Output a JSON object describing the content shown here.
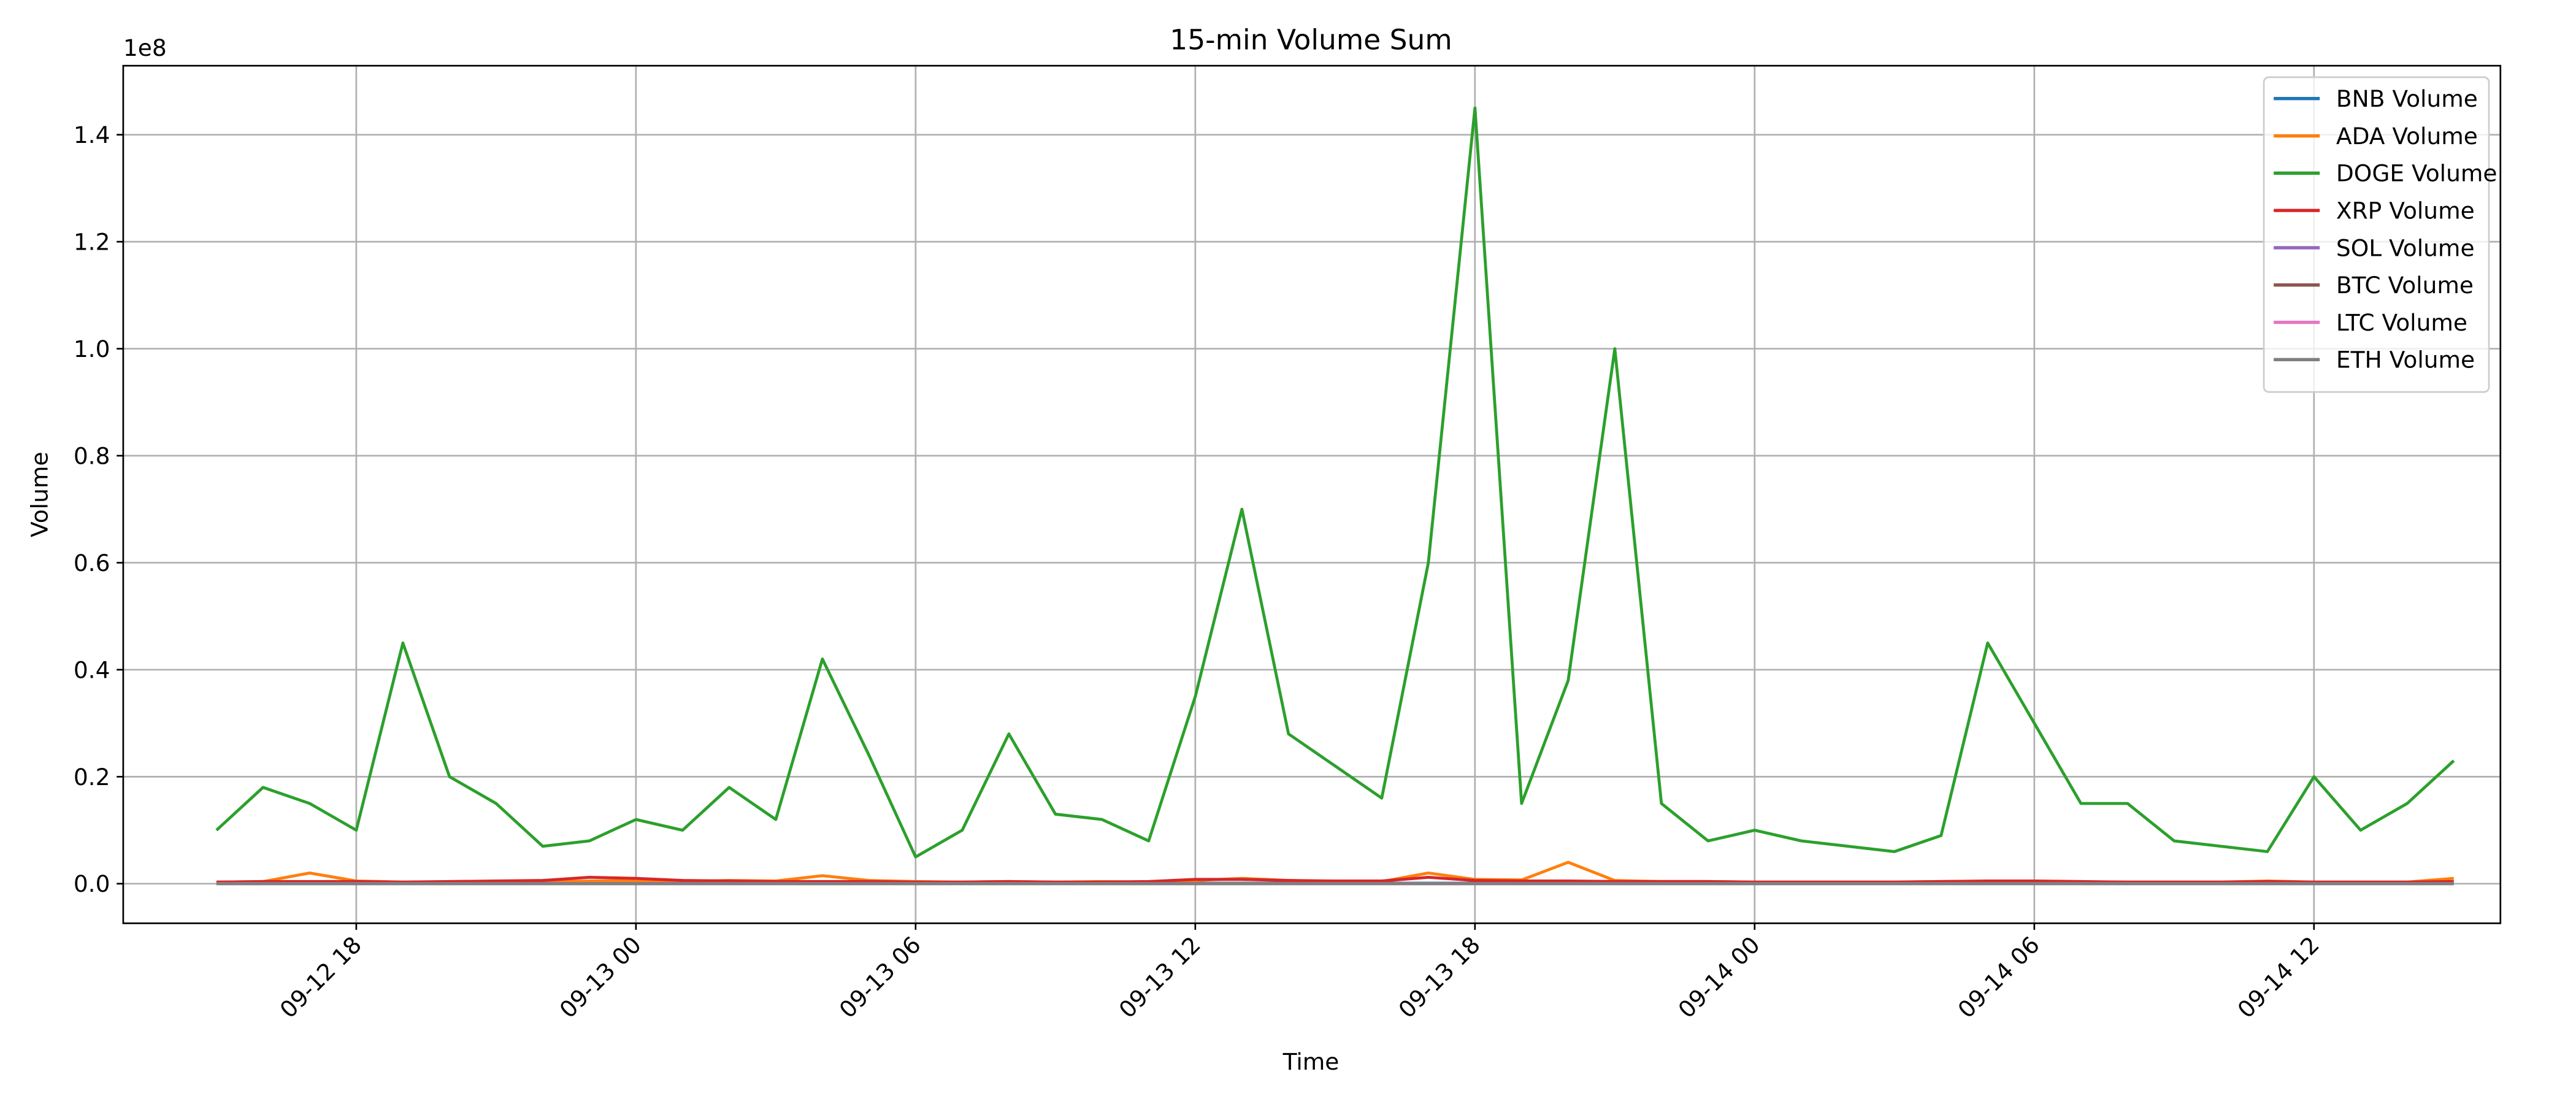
{
  "chart_data": {
    "type": "line",
    "title": "15-min Volume Sum",
    "xlabel": "Time",
    "ylabel": "Volume",
    "y_offset_label": "1e8",
    "x": [
      "09-12 15",
      "09-12 16",
      "09-12 17",
      "09-12 18",
      "09-12 19",
      "09-12 20",
      "09-12 21",
      "09-12 22",
      "09-12 23",
      "09-13 00",
      "09-13 01",
      "09-13 02",
      "09-13 03",
      "09-13 04",
      "09-13 05",
      "09-13 06",
      "09-13 07",
      "09-13 08",
      "09-13 09",
      "09-13 10",
      "09-13 11",
      "09-13 12",
      "09-13 13",
      "09-13 14",
      "09-13 15",
      "09-13 16",
      "09-13 17",
      "09-13 18",
      "09-13 19",
      "09-13 20",
      "09-13 21",
      "09-13 22",
      "09-13 23",
      "09-14 00",
      "09-14 01",
      "09-14 02",
      "09-14 03",
      "09-14 04",
      "09-14 05",
      "09-14 06",
      "09-14 07",
      "09-14 08",
      "09-14 09",
      "09-14 10",
      "09-14 11",
      "09-14 12",
      "09-14 13",
      "09-14 14",
      "09-14 15"
    ],
    "series": [
      {
        "name": "BNB Volume",
        "color": "#1f77b4",
        "values": [
          0.001,
          0.001,
          0.001,
          0.001,
          0.001,
          0.001,
          0.001,
          0.001,
          0.001,
          0.001,
          0.001,
          0.001,
          0.001,
          0.001,
          0.001,
          0.001,
          0.001,
          0.001,
          0.001,
          0.001,
          0.001,
          0.001,
          0.001,
          0.001,
          0.001,
          0.001,
          0.001,
          0.001,
          0.001,
          0.001,
          0.001,
          0.001,
          0.001,
          0.001,
          0.001,
          0.001,
          0.001,
          0.001,
          0.001,
          0.001,
          0.001,
          0.001,
          0.001,
          0.001,
          0.001,
          0.001,
          0.001,
          0.001,
          0.001
        ]
      },
      {
        "name": "ADA Volume",
        "color": "#ff7f0e",
        "values": [
          0.003,
          0.004,
          0.02,
          0.005,
          0.003,
          0.003,
          0.004,
          0.003,
          0.005,
          0.006,
          0.004,
          0.006,
          0.005,
          0.015,
          0.006,
          0.004,
          0.003,
          0.004,
          0.003,
          0.004,
          0.003,
          0.006,
          0.01,
          0.006,
          0.004,
          0.004,
          0.02,
          0.008,
          0.007,
          0.04,
          0.006,
          0.004,
          0.004,
          0.003,
          0.003,
          0.003,
          0.003,
          0.004,
          0.004,
          0.004,
          0.003,
          0.003,
          0.003,
          0.003,
          0.005,
          0.003,
          0.003,
          0.003,
          0.01
        ]
      },
      {
        "name": "DOGE Volume",
        "color": "#2ca02c",
        "values": [
          0.1,
          0.18,
          0.15,
          0.1,
          0.45,
          0.2,
          0.15,
          0.07,
          0.08,
          0.12,
          0.1,
          0.18,
          0.12,
          0.42,
          0.24,
          0.05,
          0.1,
          0.28,
          0.13,
          0.12,
          0.08,
          0.35,
          0.7,
          0.28,
          0.22,
          0.16,
          0.6,
          1.45,
          0.15,
          0.38,
          1.0,
          0.15,
          0.08,
          0.1,
          0.08,
          0.07,
          0.06,
          0.09,
          0.45,
          0.3,
          0.15,
          0.15,
          0.08,
          0.07,
          0.06,
          0.2,
          0.1,
          0.15,
          0.23
        ]
      },
      {
        "name": "XRP Volume",
        "color": "#d62728",
        "values": [
          0.003,
          0.004,
          0.004,
          0.004,
          0.003,
          0.004,
          0.005,
          0.006,
          0.012,
          0.01,
          0.006,
          0.005,
          0.004,
          0.004,
          0.004,
          0.003,
          0.003,
          0.004,
          0.003,
          0.003,
          0.004,
          0.008,
          0.008,
          0.006,
          0.005,
          0.005,
          0.012,
          0.006,
          0.005,
          0.005,
          0.004,
          0.004,
          0.004,
          0.003,
          0.003,
          0.003,
          0.003,
          0.004,
          0.005,
          0.005,
          0.004,
          0.003,
          0.003,
          0.003,
          0.004,
          0.003,
          0.003,
          0.003,
          0.004
        ]
      },
      {
        "name": "SOL Volume",
        "color": "#9467bd",
        "values": [
          0.0005,
          0.0005,
          0.0005,
          0.0005,
          0.0005,
          0.0005,
          0.0005,
          0.0005,
          0.0005,
          0.0005,
          0.0005,
          0.0005,
          0.0005,
          0.0005,
          0.0005,
          0.0005,
          0.0005,
          0.0005,
          0.0005,
          0.0005,
          0.0005,
          0.0005,
          0.0005,
          0.0005,
          0.0005,
          0.0005,
          0.0005,
          0.0005,
          0.0005,
          0.0005,
          0.0005,
          0.0005,
          0.0005,
          0.0005,
          0.0005,
          0.0005,
          0.0005,
          0.0005,
          0.0005,
          0.0005,
          0.0005,
          0.0005,
          0.0005,
          0.0005,
          0.0005,
          0.0005,
          0.0005,
          0.0005,
          0.0005
        ]
      },
      {
        "name": "BTC Volume",
        "color": "#8c564b",
        "values": [
          0,
          0,
          0,
          0,
          0,
          0,
          0,
          0,
          0,
          0,
          0,
          0,
          0,
          0,
          0,
          0,
          0,
          0,
          0,
          0,
          0,
          0,
          0,
          0,
          0,
          0,
          0,
          0,
          0,
          0,
          0,
          0,
          0,
          0,
          0,
          0,
          0,
          0,
          0,
          0,
          0,
          0,
          0,
          0,
          0,
          0,
          0,
          0,
          0
        ]
      },
      {
        "name": "LTC Volume",
        "color": "#e377c2",
        "values": [
          0.0002,
          0.0002,
          0.0002,
          0.0002,
          0.0002,
          0.0002,
          0.0002,
          0.0002,
          0.0002,
          0.0002,
          0.0002,
          0.0002,
          0.0002,
          0.0002,
          0.0002,
          0.0002,
          0.0002,
          0.0002,
          0.0002,
          0.0002,
          0.0002,
          0.0002,
          0.0002,
          0.0002,
          0.0002,
          0.0002,
          0.0002,
          0.0002,
          0.0002,
          0.0002,
          0.0002,
          0.0002,
          0.0002,
          0.0002,
          0.0002,
          0.0002,
          0.0002,
          0.0002,
          0.0002,
          0.0002,
          0.0002,
          0.0002,
          0.0002,
          0.0002,
          0.0002,
          0.0002,
          0.0002,
          0.0002,
          0.0002
        ]
      },
      {
        "name": "ETH Volume",
        "color": "#7f7f7f",
        "values": [
          0.0001,
          0.0001,
          0.0001,
          0.0001,
          0.0001,
          0.0001,
          0.0001,
          0.0001,
          0.0001,
          0.0001,
          0.0001,
          0.0001,
          0.0001,
          0.0001,
          0.0001,
          0.0001,
          0.0001,
          0.0001,
          0.0001,
          0.0001,
          0.0001,
          0.0001,
          0.0001,
          0.0001,
          0.0001,
          0.0001,
          0.0001,
          0.0001,
          0.0001,
          0.0001,
          0.0001,
          0.0001,
          0.0001,
          0.0001,
          0.0001,
          0.0001,
          0.0001,
          0.0001,
          0.0001,
          0.0001,
          0.0001,
          0.0001,
          0.0001,
          0.0001,
          0.0001,
          0.0001,
          0.0001,
          0.0001,
          0.0001
        ]
      }
    ],
    "xlim": [
      "09-12 13",
      "09-14 16"
    ],
    "xticks": [
      "09-12 18",
      "09-13 00",
      "09-13 06",
      "09-13 12",
      "09-13 18",
      "09-14 00",
      "09-14 06",
      "09-14 12"
    ],
    "ylim": [
      -0.074,
      1.529
    ],
    "yticks": [
      {
        "value": 0,
        "label": "0.0"
      },
      0.2,
      0.4,
      0.6,
      0.8,
      {
        "value": 1,
        "label": "1.0"
      },
      1.2,
      1.4
    ],
    "grid": true,
    "legend": "upper right"
  }
}
